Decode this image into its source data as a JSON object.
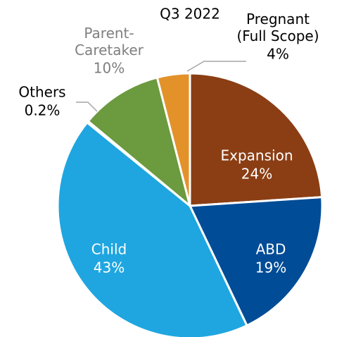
{
  "chart_data": {
    "type": "pie",
    "title": "Q3 2022",
    "categories": [
      "Expansion",
      "ABD",
      "Child",
      "Others",
      "Parent-Caretaker",
      "Pregnant (Full Scope)"
    ],
    "values": [
      24,
      19,
      43,
      0.2,
      10,
      4
    ],
    "value_labels": [
      "24%",
      "19%",
      "43%",
      "0.2%",
      "10%",
      "4%"
    ],
    "colors": [
      "#8b3e14",
      "#004c97",
      "#1fa6e0",
      "#d9d9d9",
      "#6b9a3f",
      "#e3922a"
    ]
  }
}
